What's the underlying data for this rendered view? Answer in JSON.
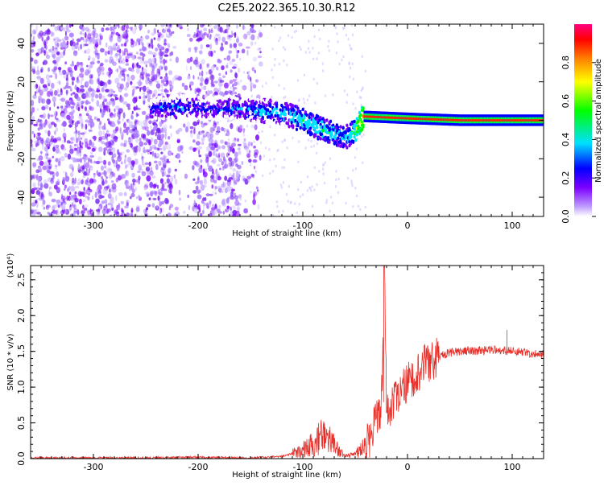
{
  "figure": {
    "title": "C2E5.2022.365.10.30.R12"
  },
  "chart_data": [
    {
      "type": "heatmap",
      "name": "spectrogram",
      "xlabel": "Height of straight line (km)",
      "ylabel": "Frequency (Hz)",
      "xlim": [
        -360,
        130
      ],
      "ylim": [
        -50,
        50
      ],
      "xticks": [
        -300,
        -200,
        -100,
        0,
        100
      ],
      "yticks": [
        -40,
        -20,
        0,
        20,
        40
      ],
      "colorbar": {
        "label": "Normalized spectral amplitude",
        "range": [
          0,
          1
        ],
        "ticks": [
          "0.0",
          "0.2",
          "0.4",
          "0.6",
          "0.8"
        ],
        "colors": [
          "#ffffff",
          "#7b00ff",
          "#0000ff",
          "#00e0ff",
          "#00ff00",
          "#ffff00",
          "#ff8000",
          "#ff0000",
          "#ff0080"
        ]
      },
      "signal_band": [
        {
          "x": -245,
          "freq": 6,
          "amp": 0.3
        },
        {
          "x": -220,
          "freq": 7,
          "amp": 0.35
        },
        {
          "x": -190,
          "freq": 6,
          "amp": 0.3
        },
        {
          "x": -160,
          "freq": 6,
          "amp": 0.35
        },
        {
          "x": -140,
          "freq": 5,
          "amp": 0.4
        },
        {
          "x": -120,
          "freq": 4,
          "amp": 0.45
        },
        {
          "x": -100,
          "freq": 0,
          "amp": 0.5
        },
        {
          "x": -80,
          "freq": -5,
          "amp": 0.5
        },
        {
          "x": -60,
          "freq": -9,
          "amp": 0.45
        },
        {
          "x": -50,
          "freq": -6,
          "amp": 0.6
        },
        {
          "x": -42,
          "freq": 2,
          "amp": 0.85
        },
        {
          "x": 0,
          "freq": 1,
          "amp": 0.9
        },
        {
          "x": 50,
          "freq": 0,
          "amp": 0.9
        },
        {
          "x": 130,
          "freq": 0,
          "amp": 0.9
        }
      ]
    },
    {
      "type": "line",
      "name": "snr",
      "xlabel": "Height of straight line (km)",
      "ylabel": "SNR (10 * v/v)",
      "scale_label": "(x10⁴)",
      "xlim": [
        -360,
        130
      ],
      "ylim": [
        0,
        2.7
      ],
      "xticks": [
        -300,
        -200,
        -100,
        0,
        100
      ],
      "yticks": [
        "0.0",
        "0.5",
        "1.0",
        "1.5",
        "2.0",
        "2.5"
      ],
      "color": "#e8302a",
      "x": [
        -360,
        -300,
        -250,
        -200,
        -150,
        -120,
        -100,
        -90,
        -80,
        -70,
        -60,
        -50,
        -40,
        -35,
        -30,
        -25,
        -22,
        -20,
        -15,
        -10,
        -5,
        0,
        10,
        20,
        30,
        40,
        50,
        60,
        70,
        80,
        90,
        100,
        110,
        120,
        130
      ],
      "y": [
        0.01,
        0.01,
        0.01,
        0.02,
        0.01,
        0.03,
        0.12,
        0.22,
        0.32,
        0.18,
        0.03,
        0.05,
        0.2,
        0.35,
        0.55,
        0.75,
        2.7,
        0.65,
        0.72,
        0.82,
        0.95,
        1.05,
        1.22,
        1.35,
        1.43,
        1.48,
        1.5,
        1.51,
        1.51,
        1.52,
        1.52,
        1.5,
        1.49,
        1.47,
        1.46
      ]
    }
  ]
}
